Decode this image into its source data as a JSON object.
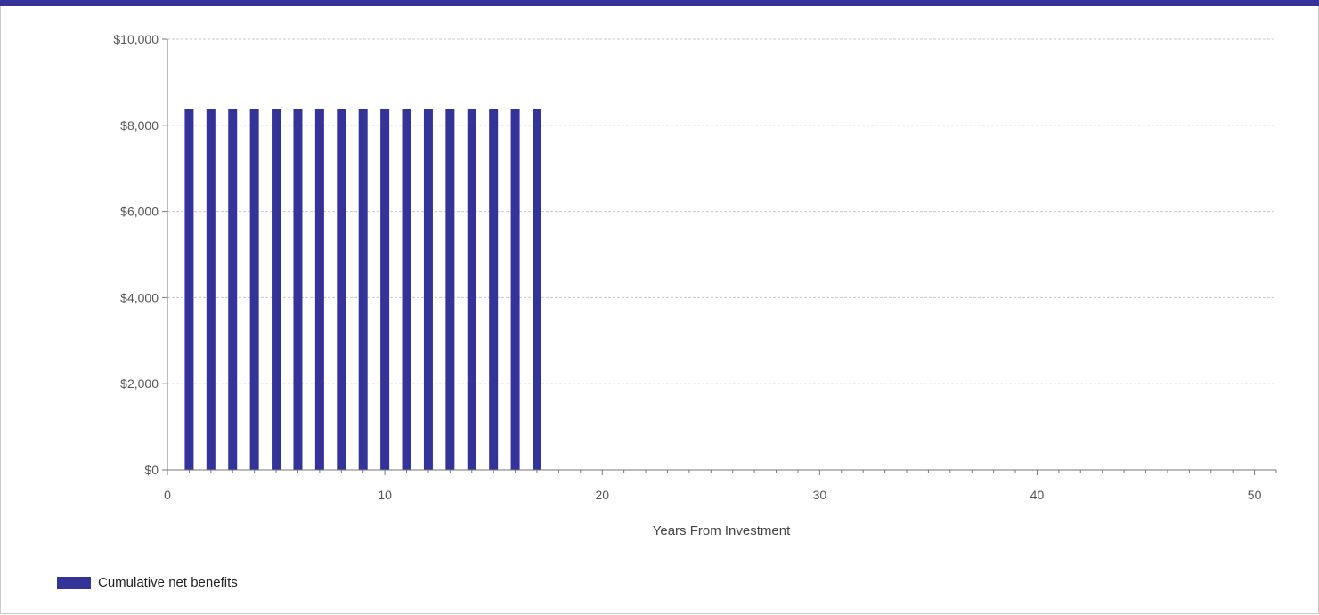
{
  "chart_data": {
    "type": "bar",
    "x": [
      1,
      2,
      3,
      4,
      5,
      6,
      7,
      8,
      9,
      10,
      11,
      12,
      13,
      14,
      15,
      16,
      17
    ],
    "series": [
      {
        "name": "Cumulative net benefits",
        "values": [
          8380,
          8380,
          8380,
          8380,
          8380,
          8380,
          8380,
          8380,
          8380,
          8380,
          8380,
          8380,
          8380,
          8380,
          8380,
          8380,
          8380
        ]
      }
    ],
    "xlabel": "Years From Investment",
    "ylabel": "",
    "xlim": [
      0,
      51
    ],
    "ylim": [
      0,
      10000
    ],
    "xticks": [
      0,
      10,
      20,
      30,
      40,
      50
    ],
    "yticks": [
      0,
      2000,
      4000,
      6000,
      8000,
      10000
    ],
    "ytick_labels": [
      "$0",
      "$2,000",
      "$4,000",
      "$6,000",
      "$8,000",
      "$10,000"
    ],
    "grid": true,
    "legend_position": "bottom-left",
    "bar_color": "#333399"
  },
  "legend": {
    "label": "Cumulative net benefits"
  }
}
